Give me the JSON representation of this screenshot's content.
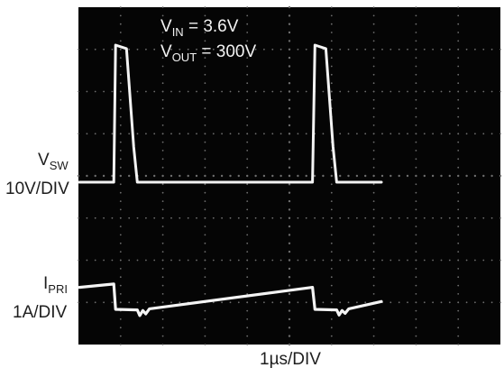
{
  "chart_data": {
    "type": "line",
    "title": "",
    "annotations": {
      "vin": {
        "main": "V",
        "sub": "IN",
        "rest": " = 3.6V"
      },
      "vout": {
        "main": "V",
        "sub": "OUT",
        "rest": " = 300V"
      }
    },
    "xlabel": "1µs/DIV",
    "time_unit": "µs",
    "grid": true,
    "background": "#050505",
    "trace_color": "#f4f4f4",
    "series": [
      {
        "channel_label": {
          "main": "V",
          "sub": "SW"
        },
        "scale_label": "10V/DIV",
        "units": "V",
        "points": [
          [
            0.0,
            0
          ],
          [
            0.57,
            0
          ],
          [
            0.6,
            39
          ],
          [
            0.78,
            38
          ],
          [
            0.9,
            10
          ],
          [
            0.96,
            0
          ],
          [
            3.86,
            0
          ],
          [
            3.9,
            39
          ],
          [
            4.08,
            38
          ],
          [
            4.2,
            10
          ],
          [
            4.26,
            0
          ],
          [
            5.0,
            0
          ]
        ]
      },
      {
        "channel_label": {
          "main": "I",
          "sub": "PRI"
        },
        "scale_label": "1A/DIV",
        "units": "A",
        "points": [
          [
            0.0,
            1.95
          ],
          [
            0.57,
            2.25
          ],
          [
            0.6,
            0.0
          ],
          [
            0.96,
            -0.05
          ],
          [
            1.0,
            -0.55
          ],
          [
            1.05,
            -0.1
          ],
          [
            1.1,
            -0.4
          ],
          [
            1.16,
            0.05
          ],
          [
            3.86,
            1.95
          ],
          [
            3.9,
            0.0
          ],
          [
            4.26,
            -0.05
          ],
          [
            4.3,
            -0.5
          ],
          [
            4.35,
            -0.1
          ],
          [
            4.4,
            -0.35
          ],
          [
            4.46,
            0.05
          ],
          [
            5.0,
            0.7
          ]
        ]
      }
    ]
  }
}
